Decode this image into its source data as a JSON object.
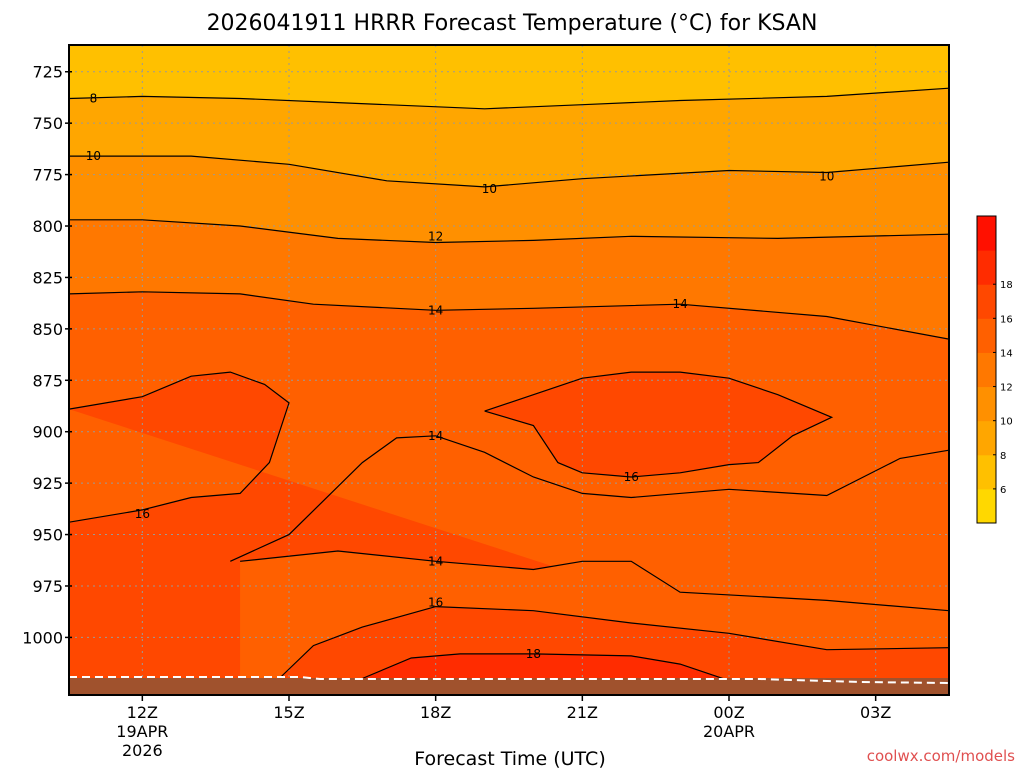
{
  "chart_data": {
    "type": "heatmap",
    "title": "2026041911 HRRR Forecast Temperature (°C) for KSAN",
    "xlabel": "Forecast Time (UTC)",
    "ylabel": "",
    "credit": "coolwx.com/models",
    "y_axis": {
      "range": [
        712,
        1028
      ],
      "ticks": [
        725,
        750,
        775,
        800,
        825,
        850,
        875,
        900,
        925,
        950,
        975,
        1000
      ]
    },
    "x_axis": {
      "range_hours": [
        10.5,
        28.5
      ],
      "ticks": [
        {
          "hour": 12,
          "lines": [
            "12Z",
            "19APR",
            "2026"
          ]
        },
        {
          "hour": 15,
          "lines": [
            "15Z"
          ]
        },
        {
          "hour": 18,
          "lines": [
            "18Z"
          ]
        },
        {
          "hour": 21,
          "lines": [
            "21Z"
          ]
        },
        {
          "hour": 24,
          "lines": [
            "00Z",
            "20APR"
          ]
        },
        {
          "hour": 27,
          "lines": [
            "03Z"
          ]
        }
      ]
    },
    "grid": true,
    "colorbar": {
      "levels": [
        4,
        6,
        8,
        10,
        12,
        14,
        16,
        18,
        20
      ],
      "labels": [
        6,
        8,
        10,
        12,
        14,
        16,
        18
      ],
      "colors": [
        "#ffd800",
        "#ffc000",
        "#ffa600",
        "#ff9000",
        "#ff7800",
        "#ff6000",
        "#ff4800",
        "#ff2c00",
        "#ff1000"
      ]
    },
    "series": [
      {
        "name": "8",
        "level": 8,
        "label_at": [
          11.0,
          738
        ],
        "points": [
          [
            10.5,
            738
          ],
          [
            12,
            737
          ],
          [
            14,
            738
          ],
          [
            16,
            740
          ],
          [
            19,
            743
          ],
          [
            21,
            741
          ],
          [
            23,
            739
          ],
          [
            26,
            737
          ],
          [
            28.5,
            733
          ]
        ]
      },
      {
        "name": "10",
        "level": 10,
        "label_at": [
          11.0,
          766
        ],
        "points": [
          [
            10.5,
            766
          ],
          [
            13,
            766
          ],
          [
            15,
            770
          ],
          [
            17,
            778
          ],
          [
            19,
            781
          ],
          [
            21,
            777
          ],
          [
            24,
            773
          ],
          [
            26,
            774
          ],
          [
            28.5,
            769
          ]
        ]
      },
      {
        "name": "10",
        "level": 10,
        "label_at": [
          19.1,
          782
        ],
        "points": []
      },
      {
        "name": "10",
        "level": 10,
        "label_at": [
          26.0,
          776
        ],
        "points": []
      },
      {
        "name": "12",
        "level": 12,
        "label_at": [
          18.0,
          805
        ],
        "points": [
          [
            10.5,
            797
          ],
          [
            12,
            797
          ],
          [
            14,
            800
          ],
          [
            16,
            806
          ],
          [
            18,
            808
          ],
          [
            20,
            807
          ],
          [
            22,
            805
          ],
          [
            25,
            806
          ],
          [
            28.5,
            804
          ]
        ]
      },
      {
        "name": "14",
        "level": 14,
        "label_at": [
          18.0,
          841
        ],
        "points": [
          [
            10.5,
            833
          ],
          [
            12,
            832
          ],
          [
            14,
            833
          ],
          [
            15.5,
            838
          ],
          [
            18,
            841
          ],
          [
            20,
            840
          ],
          [
            23,
            838
          ],
          [
            26,
            844
          ],
          [
            28.5,
            855
          ]
        ]
      },
      {
        "name": "14",
        "level": 14,
        "label_at": [
          23.0,
          838
        ],
        "points": []
      },
      {
        "name": "14",
        "level": 14,
        "label_at": [
          18.0,
          902
        ],
        "points": [
          [
            13.8,
            963
          ],
          [
            15,
            950
          ],
          [
            16.5,
            915
          ],
          [
            17.2,
            903
          ],
          [
            18,
            902
          ],
          [
            19,
            910
          ],
          [
            20,
            922
          ],
          [
            21,
            930
          ],
          [
            22,
            932
          ],
          [
            24,
            928
          ],
          [
            26,
            931
          ],
          [
            27.5,
            913
          ],
          [
            28.5,
            909
          ]
        ]
      },
      {
        "name": "16",
        "level": 16,
        "label_at": [
          12.0,
          940
        ],
        "points": [
          [
            10.5,
            944
          ],
          [
            12,
            938
          ],
          [
            13,
            932
          ],
          [
            14,
            930
          ],
          [
            14.6,
            915
          ],
          [
            15,
            886
          ],
          [
            14.5,
            877
          ],
          [
            13.8,
            871
          ],
          [
            13,
            873
          ],
          [
            12,
            883
          ],
          [
            10.5,
            889
          ]
        ]
      },
      {
        "name": "16",
        "level": 16,
        "label_at": [
          22.0,
          922
        ],
        "points": [
          [
            19,
            890
          ],
          [
            20,
            882
          ],
          [
            21,
            874
          ],
          [
            22,
            871
          ],
          [
            23,
            871
          ],
          [
            24,
            874
          ],
          [
            25,
            882
          ],
          [
            26.1,
            893
          ],
          [
            25.3,
            902
          ],
          [
            24.6,
            915
          ],
          [
            24,
            916
          ],
          [
            23,
            920
          ],
          [
            22,
            922
          ],
          [
            21,
            920
          ],
          [
            20.5,
            915
          ],
          [
            20,
            897
          ],
          [
            19,
            890
          ]
        ]
      },
      {
        "name": "14",
        "level": 14,
        "label_at": [
          18.0,
          963
        ],
        "points": [
          [
            14,
            963
          ],
          [
            16,
            958
          ],
          [
            18,
            963
          ],
          [
            20,
            967
          ],
          [
            21,
            963
          ],
          [
            22,
            963
          ],
          [
            23,
            978
          ],
          [
            26,
            982
          ],
          [
            28.5,
            987
          ]
        ]
      },
      {
        "name": "16",
        "level": 16,
        "label_at": [
          18.0,
          983
        ],
        "points": [
          [
            14.8,
            1020
          ],
          [
            15.5,
            1004
          ],
          [
            16.5,
            995
          ],
          [
            18,
            985
          ],
          [
            20,
            987
          ],
          [
            22,
            993
          ],
          [
            24,
            998
          ],
          [
            26,
            1006
          ],
          [
            28.5,
            1005
          ]
        ]
      },
      {
        "name": "18",
        "level": 18,
        "label_at": [
          20.0,
          1008
        ],
        "points": [
          [
            16.5,
            1020
          ],
          [
            17.5,
            1010
          ],
          [
            18.5,
            1008
          ],
          [
            20,
            1008
          ],
          [
            22,
            1009
          ],
          [
            23,
            1013
          ],
          [
            24,
            1021
          ]
        ]
      }
    ]
  }
}
